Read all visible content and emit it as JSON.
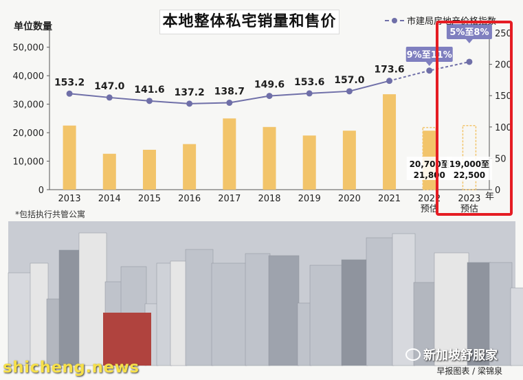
{
  "title": "本地整体私宅销量和售价",
  "legend_label": "市建局房地产价格指数",
  "ylabel_left": "单位数量",
  "note": "*包括执行共管公寓",
  "credit": "早报图表 / 梁锦泉",
  "watermark": "shicheng.news",
  "wechat_label": "新加坡舒服家",
  "colors": {
    "bar": "#f2c46a",
    "line": "#6f6fa8",
    "highlight": "#e51c23",
    "callout": "#7f7fbf"
  },
  "chart_data": {
    "type": "bar",
    "categories": [
      "2013",
      "2014",
      "2015",
      "2016",
      "2017",
      "2018",
      "2019",
      "2020",
      "2021",
      "2022\n预估",
      "2023\n预估"
    ],
    "x_unit": "年",
    "series": [
      {
        "name": "",
        "axis": "left",
        "values": [
          22500,
          12600,
          14000,
          16000,
          25000,
          22000,
          19000,
          20700,
          33500,
          20700,
          19000
        ],
        "ranges": [
          null,
          null,
          null,
          null,
          null,
          null,
          null,
          null,
          null,
          [
            20700,
            21800
          ],
          [
            19000,
            22500
          ]
        ],
        "forecast": [
          false,
          false,
          false,
          false,
          false,
          false,
          false,
          false,
          false,
          true,
          true
        ]
      },
      {
        "name": "市建局房地产价格指数",
        "axis": "right",
        "type": "line",
        "values": [
          153.2,
          147.0,
          141.6,
          137.2,
          138.7,
          149.6,
          153.6,
          157.0,
          173.6,
          190.0,
          204.0
        ],
        "labels": [
          "153.2",
          "147.0",
          "141.6",
          "137.2",
          "138.7",
          "149.6",
          "153.6",
          "157.0",
          "173.6",
          "",
          ""
        ]
      }
    ],
    "range_labels": [
      "20,700至21,800",
      "19,000至22,500"
    ],
    "callouts": [
      "9%至11%",
      "5%至8%"
    ],
    "yticks_left": [
      "0",
      "10,000",
      "20,000",
      "30,000",
      "40,000",
      "50,000"
    ],
    "ylim_left": [
      0,
      55000
    ],
    "yticks_right": [
      "0",
      "50",
      "100",
      "150",
      "200",
      "250"
    ],
    "ylim_right": [
      0,
      250
    ],
    "grid": false
  }
}
